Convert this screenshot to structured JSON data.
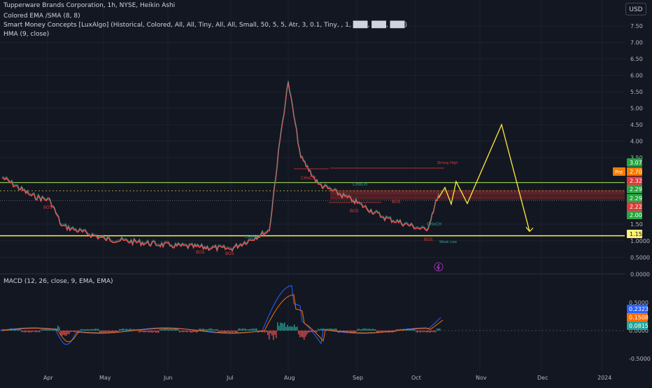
{
  "legend": {
    "title": "Tupperware Brands Corporation, 1h, NYSE, Heikin Ashi",
    "ema": "Colored EMA /SMA (8, 8)",
    "smc": "Smart Money Concepts [LuxAlgo] (Historical, Colored, All, All, Tiny, All, All, Small, 50, 5, 5, Atr, 3, 0.1, Tiny, , 1, ███, ███, ███)",
    "hma": "HMA (9, close)",
    "macd": "MACD (12, 26, close, 9, EMA, EMA)"
  },
  "currency_button": "USD",
  "price_axis": {
    "ticks": [
      "7.50",
      "7.00",
      "6.50",
      "6.00",
      "5.50",
      "5.00",
      "4.50",
      "4.00",
      "3.50",
      "1.50",
      "1.0000",
      "0.5000",
      "0.0000"
    ]
  },
  "macd_axis": {
    "ticks": [
      "0.5000",
      "0.0000",
      "-0.5000"
    ]
  },
  "time_axis": {
    "labels": [
      "Apr",
      "May",
      "Jun",
      "Jul",
      "Aug",
      "Sep",
      "Oct",
      "Nov",
      "Dec",
      "2024"
    ]
  },
  "price_badges": [
    {
      "label": "3.07",
      "color": "#26a641"
    },
    {
      "label": "2.70",
      "color": "#f57c00",
      "tag": "Pre"
    },
    {
      "label": "2.32",
      "color": "#e03a3a"
    },
    {
      "label": "2.29",
      "color": "#26a641"
    },
    {
      "label": "2.29",
      "color": "#26a641"
    },
    {
      "label": "2.22",
      "color": "#e03a3a"
    },
    {
      "label": "2.00",
      "color": "#26a641"
    },
    {
      "label": "1.15",
      "color": "#fff176"
    }
  ],
  "macd_badges": [
    {
      "label": "0.2323",
      "color": "#2962ff"
    },
    {
      "label": "0.1508",
      "color": "#ff6d00"
    },
    {
      "label": "0.0815",
      "color": "#26a69a"
    }
  ],
  "annotations": {
    "bos": "BOS",
    "choch": "CHoCH",
    "strong_high": "Strong High",
    "weak_low": "Weak Low"
  },
  "chart_data": {
    "type": "line",
    "title": "Tupperware Brands Corporation, 1h, NYSE, Heikin Ashi",
    "x_labels": [
      "Apr",
      "May",
      "Jun",
      "Jul",
      "Aug",
      "Sep",
      "Oct",
      "Nov",
      "Dec",
      "2024"
    ],
    "ylim": [
      0,
      7.5
    ],
    "log_scale": false,
    "grid": true,
    "series": [
      {
        "x": [
          "Mar",
          "Mar",
          "Apr",
          "Apr",
          "May",
          "Jun",
          "Jul",
          "Jul",
          "Aug",
          "Aug",
          "Aug",
          "Aug",
          "Sep",
          "Sep",
          "Oct",
          "Oct"
        ],
        "values": [
          2.9,
          2.35,
          2.2,
          1.45,
          1.05,
          0.85,
          0.75,
          1.3,
          4.0,
          5.8,
          3.5,
          2.7,
          2.2,
          1.7,
          1.3,
          2.4
        ]
      }
    ],
    "levels": [
      2.75,
      1.15,
      2.5,
      2.35,
      2.22
    ],
    "projection": {
      "x": [
        "Oct",
        "Oct",
        "Oct",
        "Oct",
        "Nov",
        "Nov",
        "Dec"
      ],
      "values": [
        2.29,
        2.6,
        2.1,
        2.78,
        2.12,
        4.5,
        1.28
      ]
    },
    "macd": {
      "macd": 0.2323,
      "signal": 0.1508,
      "histogram": 0.0815,
      "ylim": [
        -0.5,
        0.5
      ]
    }
  }
}
